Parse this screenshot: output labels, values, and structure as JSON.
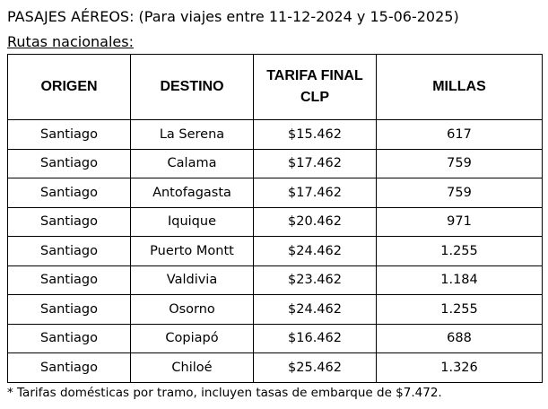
{
  "document": {
    "heading": "PASAJES AÉREOS: (Para viajes entre 11-12-2024 y 15-06-2025)",
    "subheading": "Rutas nacionales:",
    "footnote": "* Tarifas domésticas por tramo, incluyen tasas de embarque de $7.472."
  },
  "table": {
    "headers": [
      {
        "line1": "ORIGEN",
        "line2": ""
      },
      {
        "line1": "DESTINO",
        "line2": ""
      },
      {
        "line1": "TARIFA FINAL",
        "line2": "CLP"
      },
      {
        "line1": "MILLAS",
        "line2": ""
      }
    ],
    "rows": [
      {
        "origen": "Santiago",
        "destino": "La Serena",
        "tarifa": "$15.462",
        "millas": "617"
      },
      {
        "origen": "Santiago",
        "destino": "Calama",
        "tarifa": "$17.462",
        "millas": "759"
      },
      {
        "origen": "Santiago",
        "destino": "Antofagasta",
        "tarifa": "$17.462",
        "millas": "759"
      },
      {
        "origen": "Santiago",
        "destino": "Iquique",
        "tarifa": "$20.462",
        "millas": "971"
      },
      {
        "origen": "Santiago",
        "destino": "Puerto Montt",
        "tarifa": "$24.462",
        "millas": "1.255"
      },
      {
        "origen": "Santiago",
        "destino": "Valdivia",
        "tarifa": "$23.462",
        "millas": "1.184"
      },
      {
        "origen": "Santiago",
        "destino": "Osorno",
        "tarifa": "$24.462",
        "millas": "1.255"
      },
      {
        "origen": "Santiago",
        "destino": "Copiapó",
        "tarifa": "$16.462",
        "millas": "688"
      },
      {
        "origen": "Santiago",
        "destino": "Chiloé",
        "tarifa": "$25.462",
        "millas": "1.326"
      }
    ]
  }
}
